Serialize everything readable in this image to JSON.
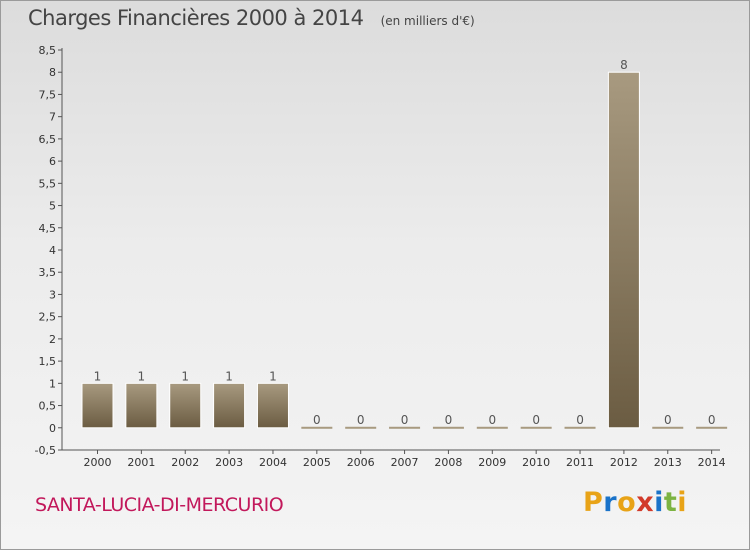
{
  "header": {
    "title": "Charges Financières 2000 à 2014",
    "unit": "(en milliers d'€)"
  },
  "footer": {
    "commune": "SANTA-LUCIA-DI-MERCURIO",
    "logo_text": "Proxiti"
  },
  "colors": {
    "bar_top": "#a89a80",
    "bar_bottom": "#6b5c42",
    "commune_text": "#c2185b",
    "logo_letters": [
      "#e8a317",
      "#1a73c9",
      "#e8a317",
      "#d23a2a",
      "#1a73c9",
      "#7cb342",
      "#e8a317"
    ]
  },
  "chart_data": {
    "type": "bar",
    "categories": [
      "2000",
      "2001",
      "2002",
      "2003",
      "2004",
      "2005",
      "2006",
      "2007",
      "2008",
      "2009",
      "2010",
      "2011",
      "2012",
      "2013",
      "2014"
    ],
    "values": [
      1,
      1,
      1,
      1,
      1,
      0,
      0,
      0,
      0,
      0,
      0,
      0,
      8,
      0,
      0
    ],
    "ylim": [
      -0.5,
      8.5
    ],
    "yticks": [
      "-0,5",
      "0",
      "0,5",
      "1",
      "1,5",
      "2",
      "2,5",
      "3",
      "3,5",
      "4",
      "4,5",
      "5",
      "5,5",
      "6",
      "6,5",
      "7",
      "7,5",
      "8",
      "8,5"
    ],
    "grid": false,
    "xlabel": "",
    "ylabel": ""
  }
}
